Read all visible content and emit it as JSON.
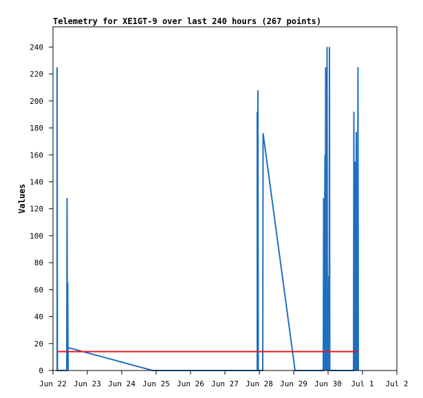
{
  "chart_data": {
    "type": "line",
    "title": "Telemetry for XE1GT-9 over last 240 hours (267 points)",
    "xlabel": "",
    "ylabel": "Values",
    "x_axis": {
      "ticks": [
        "Jun 22",
        "Jun 23",
        "Jun 24",
        "Jun 25",
        "Jun 26",
        "Jun 27",
        "Jun 28",
        "Jun 29",
        "Jun 30",
        "Jul 1",
        "Jul 2"
      ]
    },
    "y_axis": {
      "ticks": [
        0,
        20,
        40,
        60,
        80,
        100,
        120,
        140,
        160,
        180,
        200,
        220,
        240
      ],
      "ylim": [
        0,
        255
      ]
    },
    "xlim_days": [
      0,
      10
    ],
    "grid": false,
    "legend": "none",
    "series": [
      {
        "color": "#1e6fc0",
        "style": "spiky-line",
        "points": [
          [
            0.12,
            0
          ],
          [
            0.12,
            225
          ],
          [
            0.13,
            0
          ],
          [
            0.4,
            0
          ],
          [
            0.41,
            128
          ],
          [
            0.42,
            0
          ],
          [
            0.43,
            65
          ],
          [
            0.44,
            0
          ],
          [
            0.44,
            17
          ],
          [
            2.9,
            0
          ],
          [
            5.94,
            0
          ],
          [
            5.94,
            192
          ],
          [
            5.95,
            0
          ],
          [
            5.96,
            208
          ],
          [
            5.97,
            0
          ],
          [
            6.1,
            0
          ],
          [
            6.11,
            176
          ],
          [
            7.04,
            0
          ],
          [
            7.86,
            0
          ],
          [
            7.87,
            128
          ],
          [
            7.88,
            0
          ],
          [
            7.91,
            160
          ],
          [
            7.92,
            0
          ],
          [
            7.93,
            225
          ],
          [
            7.94,
            0
          ],
          [
            7.95,
            88
          ],
          [
            7.96,
            0
          ],
          [
            7.97,
            240
          ],
          [
            7.98,
            0
          ],
          [
            7.99,
            30
          ],
          [
            8.0,
            50
          ],
          [
            8.01,
            0
          ],
          [
            8.02,
            70
          ],
          [
            8.03,
            0
          ],
          [
            8.04,
            240
          ],
          [
            8.05,
            0
          ],
          [
            8.74,
            0
          ],
          [
            8.75,
            192
          ],
          [
            8.76,
            0
          ],
          [
            8.77,
            110
          ],
          [
            8.78,
            0
          ],
          [
            8.79,
            155
          ],
          [
            8.8,
            0
          ],
          [
            8.81,
            67
          ],
          [
            8.82,
            177
          ],
          [
            8.83,
            0
          ],
          [
            8.84,
            85
          ],
          [
            8.85,
            0
          ],
          [
            8.87,
            225
          ],
          [
            8.88,
            0
          ]
        ]
      },
      {
        "color": "#e41a1c",
        "style": "flat-line",
        "points": [
          [
            0.12,
            14
          ],
          [
            8.88,
            14
          ]
        ]
      }
    ]
  }
}
